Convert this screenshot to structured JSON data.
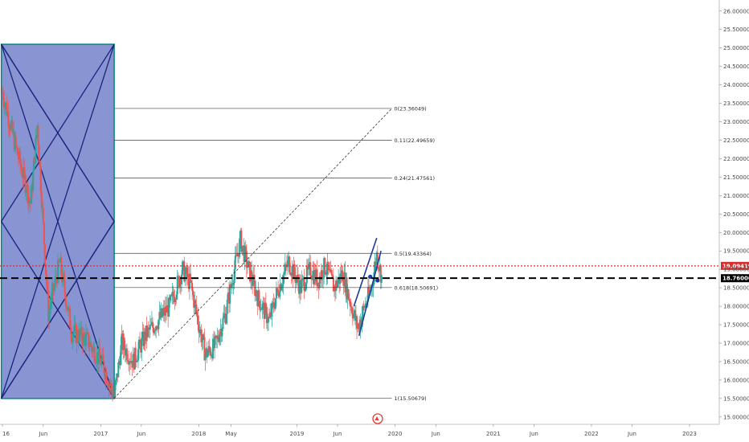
{
  "chart_data": {
    "type": "candlestick",
    "title": "",
    "xlabel": "",
    "ylabel": "",
    "ylim": [
      14.8,
      26.3
    ],
    "y_ticks": [
      "26.00000",
      "25.50000",
      "25.00000",
      "24.50000",
      "24.00000",
      "23.50000",
      "23.00000",
      "22.50000",
      "22.00000",
      "21.50000",
      "21.00000",
      "20.50000",
      "20.00000",
      "19.50000",
      "19.00000",
      "18.50000",
      "18.00000",
      "17.50000",
      "17.00000",
      "16.50000",
      "16.00000",
      "15.50000",
      "15.00000"
    ],
    "x_ticks": [
      {
        "label": "16",
        "date": "2016-01-01"
      },
      {
        "label": "Jun",
        "date": "2016-06-01"
      },
      {
        "label": "2017",
        "date": "2017-01-01"
      },
      {
        "label": "Jun",
        "date": "2017-06-01"
      },
      {
        "label": "2018",
        "date": "2018-01-01"
      },
      {
        "label": "May",
        "date": "2018-05-01"
      },
      {
        "label": "2019",
        "date": "2019-01-01"
      },
      {
        "label": "Jun",
        "date": "2019-06-01"
      },
      {
        "label": "2020",
        "date": "2020-01-01"
      },
      {
        "label": "Jun",
        "date": "2020-06-01"
      },
      {
        "label": "2021",
        "date": "2021-01-01"
      },
      {
        "label": "Jun",
        "date": "2021-06-01"
      },
      {
        "label": "2022",
        "date": "2022-01-01"
      },
      {
        "label": "Jun",
        "date": "2022-06-01"
      },
      {
        "label": "2023",
        "date": "2023-01-01"
      }
    ],
    "price_path": [
      [
        "2016-01-01",
        23.8
      ],
      [
        "2016-02-20",
        22.3
      ],
      [
        "2016-04-15",
        20.8
      ],
      [
        "2016-05-10",
        22.9
      ],
      [
        "2016-06-20",
        17.8
      ],
      [
        "2016-08-01",
        19.2
      ],
      [
        "2016-09-15",
        17.3
      ],
      [
        "2016-11-10",
        17.1
      ],
      [
        "2017-01-10",
        16.4
      ],
      [
        "2017-02-20",
        15.55
      ],
      [
        "2017-03-20",
        17.0
      ],
      [
        "2017-05-01",
        16.5
      ],
      [
        "2017-06-15",
        17.2
      ],
      [
        "2017-08-01",
        17.6
      ],
      [
        "2017-09-15",
        18.0
      ],
      [
        "2017-11-01",
        19.0
      ],
      [
        "2017-12-01",
        18.6
      ],
      [
        "2018-01-01",
        17.5
      ],
      [
        "2018-01-25",
        16.7
      ],
      [
        "2018-03-01",
        16.9
      ],
      [
        "2018-04-10",
        17.8
      ],
      [
        "2018-05-10",
        18.9
      ],
      [
        "2018-06-05",
        19.8
      ],
      [
        "2018-07-01",
        19.1
      ],
      [
        "2018-08-10",
        18.2
      ],
      [
        "2018-09-20",
        17.6
      ],
      [
        "2018-10-20",
        18.4
      ],
      [
        "2018-12-01",
        19.2
      ],
      [
        "2019-01-15",
        18.5
      ],
      [
        "2019-02-20",
        19.0
      ],
      [
        "2019-03-20",
        18.7
      ],
      [
        "2019-04-15",
        19.1
      ],
      [
        "2019-05-20",
        18.5
      ],
      [
        "2019-06-20",
        18.9
      ],
      [
        "2019-07-15",
        18.2
      ],
      [
        "2019-08-15",
        17.4
      ],
      [
        "2019-09-10",
        18.0
      ],
      [
        "2019-10-05",
        18.5
      ],
      [
        "2019-10-25",
        19.4
      ],
      [
        "2019-11-15",
        18.7
      ],
      [
        "2019-12-01",
        19.1
      ]
    ],
    "horizontal_lines": [
      {
        "name": "current-price",
        "value": 19.09419,
        "label": "19.09419",
        "color": "#d32f2f",
        "style": "dotted"
      },
      {
        "name": "support-level",
        "value": 18.76006,
        "label": "18.76006",
        "color": "#000000",
        "style": "dashed"
      }
    ],
    "fibonacci": {
      "start": {
        "date": "2017-02-20",
        "value": 15.50679
      },
      "end": {
        "date": "2019-12-20",
        "value": 23.36049
      },
      "line_end_date": "2019-12-20",
      "levels": [
        {
          "label": "0(23.36049)",
          "value": 23.36049
        },
        {
          "label": "0.11(22.49659)",
          "value": 22.49659
        },
        {
          "label": "0.24(21.47561)",
          "value": 21.47561
        },
        {
          "label": "0.5(19.43364)",
          "value": 19.43364
        },
        {
          "label": "0.618(18.50691)",
          "value": 18.50691
        },
        {
          "label": "1(15.50679)",
          "value": 15.50679
        }
      ]
    },
    "gann_box": {
      "start_date": "2015-12-28",
      "end_date": "2017-02-20",
      "top": 25.1,
      "bottom": 15.5,
      "fill": "#5c6bc0",
      "border": "#00897b",
      "line_color": "#1a237e"
    },
    "channel": {
      "upper": [
        [
          "2019-08-01",
          18.0
        ],
        [
          "2019-10-25",
          19.85
        ]
      ],
      "lower": [
        [
          "2019-08-20",
          17.2
        ],
        [
          "2019-11-10",
          19.5
        ]
      ],
      "color": "#1a3c9c",
      "marker_points": [
        [
          "2019-10-01",
          18.8
        ],
        [
          "2019-10-28",
          18.7
        ]
      ]
    },
    "colors": {
      "up": "#26a69a",
      "down": "#ef5350",
      "text": "#4a4a4a",
      "grid_line": "#222222"
    }
  }
}
